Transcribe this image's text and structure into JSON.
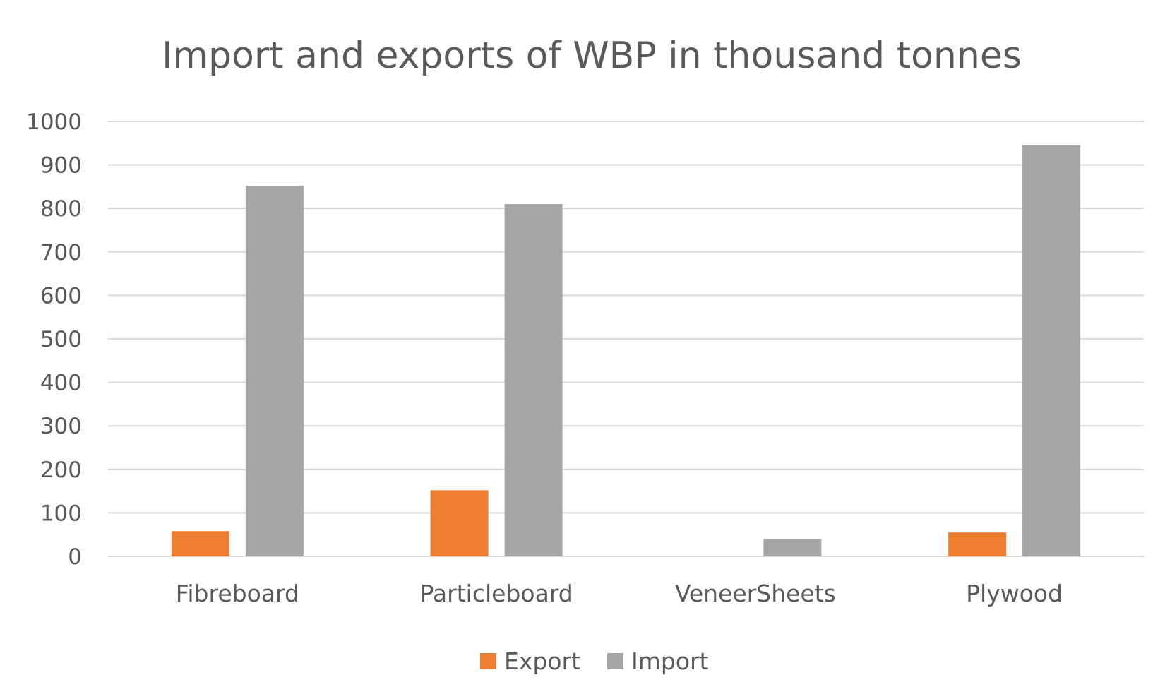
{
  "chart_data": {
    "type": "bar",
    "title": "Import and exports of WBP in thousand tonnes",
    "xlabel": "",
    "ylabel": "",
    "categories": [
      "Fibreboard",
      "Particleboard",
      "VeneerSheets",
      "Plywood"
    ],
    "series": [
      {
        "name": "Export",
        "color": "#ed7d31",
        "values": [
          58,
          152,
          0,
          55
        ]
      },
      {
        "name": "Import",
        "color": "#a5a5a5",
        "values": [
          852,
          810,
          40,
          945
        ]
      }
    ],
    "ylim": [
      0,
      1000
    ],
    "yticks": [
      "0",
      "100",
      "200",
      "300",
      "400",
      "500",
      "600",
      "700",
      "800",
      "900",
      "1000"
    ],
    "grid": true,
    "legend_position": "bottom"
  }
}
